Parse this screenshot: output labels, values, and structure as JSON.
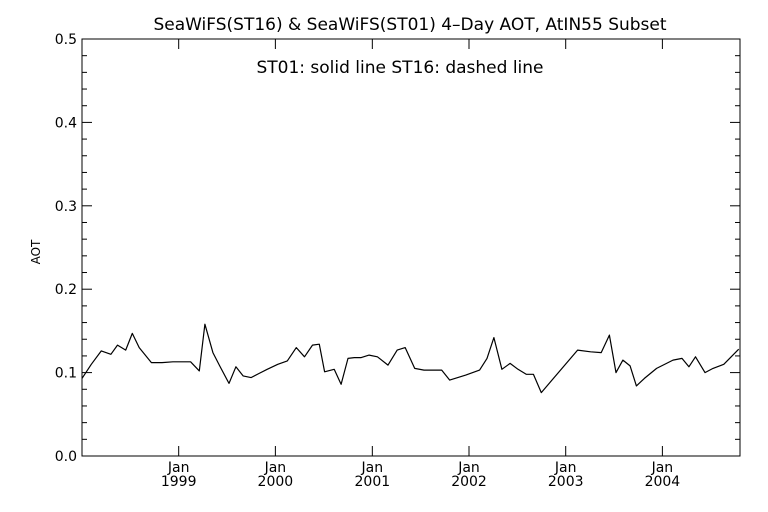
{
  "chart_data": {
    "type": "line",
    "title": "SeaWiFS(ST16) & SeaWiFS(ST01) 4–Day AOT, AtIN55 Subset",
    "annotation": "ST01: solid line   ST16: dashed line",
    "xlabel": "",
    "ylabel": "AOT",
    "xlim": [
      "1998-01-01",
      "2004-10-20"
    ],
    "ylim": [
      0.0,
      0.5
    ],
    "yticks": [
      "0.0",
      "0.1",
      "0.2",
      "0.3",
      "0.4",
      "0.5"
    ],
    "xticks": [
      {
        "date": "1999-01-01",
        "month": "Jan",
        "year": "1999"
      },
      {
        "date": "2000-01-01",
        "month": "Jan",
        "year": "2000"
      },
      {
        "date": "2001-01-01",
        "month": "Jan",
        "year": "2001"
      },
      {
        "date": "2002-01-01",
        "month": "Jan",
        "year": "2002"
      },
      {
        "date": "2003-01-01",
        "month": "Jan",
        "year": "2003"
      },
      {
        "date": "2004-01-01",
        "month": "Jan",
        "year": "2004"
      }
    ],
    "grid": false,
    "legend": "none",
    "series": [
      {
        "name": "ST01",
        "style": "solid",
        "x": [
          "1998-01-01",
          "1998-02-05",
          "1998-03-15",
          "1998-04-20",
          "1998-05-15",
          "1998-06-15",
          "1998-07-10",
          "1998-08-05",
          "1998-09-20",
          "1998-10-30",
          "1998-12-10",
          "1999-01-10",
          "1999-02-15",
          "1999-03-20",
          "1999-04-10",
          "1999-05-10",
          "1999-06-05",
          "1999-07-10",
          "1999-08-05",
          "1999-09-01",
          "1999-10-01",
          "1999-11-01",
          "1999-12-01",
          "2000-01-10",
          "2000-02-15",
          "2000-03-20",
          "2000-04-20",
          "2000-05-20",
          "2000-06-15",
          "2000-07-05",
          "2000-08-10",
          "2000-09-05",
          "2000-10-01",
          "2000-10-25",
          "2000-11-20",
          "2000-12-20",
          "2001-01-20",
          "2001-03-01",
          "2001-04-05",
          "2001-05-05",
          "2001-06-10",
          "2001-07-15",
          "2001-08-20",
          "2001-09-20",
          "2001-10-20",
          "2001-12-20",
          "2002-02-10",
          "2002-03-10",
          "2002-04-05",
          "2002-05-05",
          "2002-06-05",
          "2002-07-05",
          "2002-08-05",
          "2002-09-01",
          "2002-10-01",
          "2002-10-25",
          "2003-02-15",
          "2003-04-05",
          "2003-05-15",
          "2003-06-15",
          "2003-07-10",
          "2003-08-05",
          "2003-09-01",
          "2003-09-25",
          "2003-10-25",
          "2003-12-10",
          "2004-02-10",
          "2004-03-15",
          "2004-04-10",
          "2004-05-05",
          "2004-06-10",
          "2004-07-10",
          "2004-08-20",
          "2004-10-15"
        ],
        "y": [
          0.093,
          0.11,
          0.126,
          0.122,
          0.133,
          0.127,
          0.147,
          0.13,
          0.112,
          0.112,
          0.113,
          0.113,
          0.113,
          0.102,
          0.158,
          0.124,
          0.108,
          0.087,
          0.107,
          0.096,
          0.094,
          0.099,
          0.104,
          0.11,
          0.114,
          0.13,
          0.119,
          0.133,
          0.134,
          0.101,
          0.104,
          0.086,
          0.117,
          0.118,
          0.118,
          0.121,
          0.119,
          0.109,
          0.127,
          0.13,
          0.105,
          0.103,
          0.103,
          0.103,
          0.091,
          0.097,
          0.103,
          0.117,
          0.142,
          0.104,
          0.111,
          0.104,
          0.098,
          0.098,
          0.076,
          0.085,
          0.127,
          0.125,
          0.124,
          0.145,
          0.1,
          0.115,
          0.108,
          0.084,
          0.093,
          0.105,
          0.115,
          0.117,
          0.107,
          0.119,
          0.1,
          0.105,
          0.11,
          0.128
        ]
      }
    ]
  }
}
